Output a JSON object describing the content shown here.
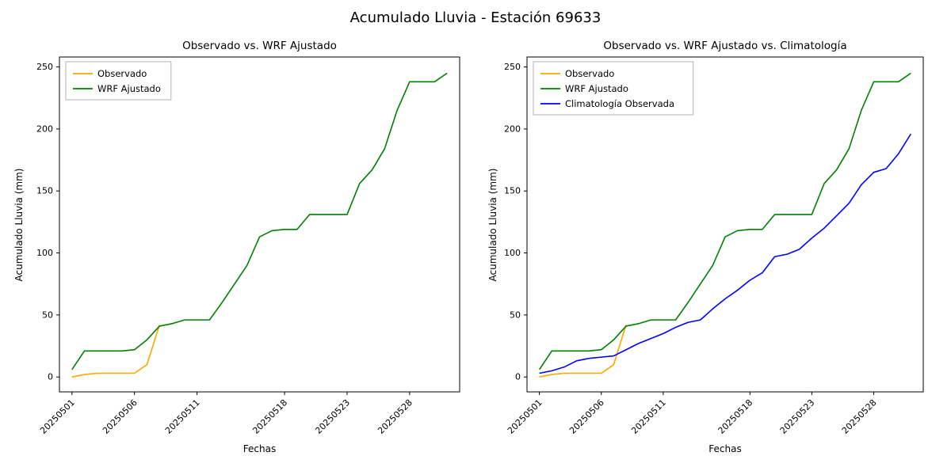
{
  "figure": {
    "title": "Acumulado Lluvia - Estación 69633",
    "background_color": "#ffffff"
  },
  "chart_data": [
    {
      "type": "line",
      "title": "Observado vs. WRF Ajustado",
      "xlabel": "Fechas",
      "ylabel": "Acumulado Lluvia (mm)",
      "legend_position": "upper-left",
      "grid": false,
      "xlim": [
        -1,
        31
      ],
      "ylim": [
        -12,
        258
      ],
      "yticks": [
        0,
        50,
        100,
        150,
        200,
        250
      ],
      "x_ticks": [
        {
          "index": 0,
          "label": "20250501"
        },
        {
          "index": 5,
          "label": "20250506"
        },
        {
          "index": 10,
          "label": "20250511"
        },
        {
          "index": 17,
          "label": "20250518"
        },
        {
          "index": 22,
          "label": "20250523"
        },
        {
          "index": 27,
          "label": "20250528"
        }
      ],
      "series": [
        {
          "name": "Observado",
          "color": "#ffa500",
          "values": [
            0,
            2,
            3,
            3,
            3,
            3,
            10,
            42
          ]
        },
        {
          "name": "WRF Ajustado",
          "color": "#008000",
          "values": [
            6,
            21,
            21,
            21,
            21,
            22,
            30,
            41,
            43,
            46,
            46,
            46,
            60,
            75,
            90,
            113,
            118,
            119,
            119,
            131,
            131,
            131,
            131,
            156,
            167,
            184,
            215,
            238,
            238,
            238,
            245
          ]
        }
      ]
    },
    {
      "type": "line",
      "title": "Observado vs. WRF Ajustado vs. Climatología",
      "xlabel": "Fechas",
      "ylabel": "Acumulado Lluvia (mm)",
      "legend_position": "upper-left",
      "grid": false,
      "xlim": [
        -1,
        31
      ],
      "ylim": [
        -12,
        258
      ],
      "yticks": [
        0,
        50,
        100,
        150,
        200,
        250
      ],
      "x_ticks": [
        {
          "index": 0,
          "label": "20250501"
        },
        {
          "index": 5,
          "label": "20250506"
        },
        {
          "index": 10,
          "label": "20250511"
        },
        {
          "index": 17,
          "label": "20250518"
        },
        {
          "index": 22,
          "label": "20250523"
        },
        {
          "index": 27,
          "label": "20250528"
        }
      ],
      "series": [
        {
          "name": "Observado",
          "color": "#ffa500",
          "values": [
            0,
            2,
            3,
            3,
            3,
            3,
            10,
            42
          ]
        },
        {
          "name": "WRF Ajustado",
          "color": "#008000",
          "values": [
            6,
            21,
            21,
            21,
            21,
            22,
            30,
            41,
            43,
            46,
            46,
            46,
            60,
            75,
            90,
            113,
            118,
            119,
            119,
            131,
            131,
            131,
            131,
            156,
            167,
            184,
            215,
            238,
            238,
            238,
            245
          ]
        },
        {
          "name": "Climatología Observada",
          "color": "#0000ff",
          "values": [
            3,
            5,
            8,
            13,
            15,
            16,
            17,
            22,
            27,
            31,
            35,
            40,
            44,
            46,
            55,
            63,
            70,
            78,
            84,
            97,
            99,
            103,
            112,
            120,
            130,
            140,
            155,
            165,
            168,
            180,
            196
          ]
        }
      ]
    }
  ]
}
